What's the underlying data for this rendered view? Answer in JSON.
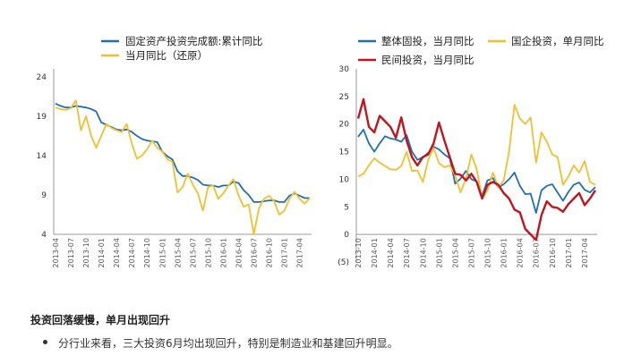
{
  "chart_data": [
    {
      "type": "line",
      "x": [
        "2013-04",
        "2013-05",
        "2013-06",
        "2013-07",
        "2013-08",
        "2013-09",
        "2013-10",
        "2013-11",
        "2013-12",
        "2014-01",
        "2014-02",
        "2014-03",
        "2014-04",
        "2014-05",
        "2014-06",
        "2014-07",
        "2014-08",
        "2014-09",
        "2014-10",
        "2014-11",
        "2014-12",
        "2015-01",
        "2015-02",
        "2015-03",
        "2015-04",
        "2015-05",
        "2015-06",
        "2015-07",
        "2015-08",
        "2015-09",
        "2015-10",
        "2015-11",
        "2015-12",
        "2016-01",
        "2016-02",
        "2016-03",
        "2016-04",
        "2016-05",
        "2016-06",
        "2016-07",
        "2016-08",
        "2016-09",
        "2016-10",
        "2016-11",
        "2016-12",
        "2017-01",
        "2017-02",
        "2017-03",
        "2017-04",
        "2017-05",
        "2017-06"
      ],
      "x_tick_labels": [
        "2013-04",
        "2013-07",
        "2013-10",
        "2014-01",
        "2014-04",
        "2014-07",
        "2014-10",
        "2015-01",
        "2015-04",
        "2015-07",
        "2015-10",
        "2016-01",
        "2016-04",
        "2016-07",
        "2016-10",
        "2017-01",
        "2017-04"
      ],
      "y_ticks": [
        4,
        9,
        14,
        19,
        24
      ],
      "ylim": [
        4,
        25
      ],
      "series": [
        {
          "name": "固定资产投资完成额:累计同比",
          "color": "#1f6fb5",
          "values": [
            20.6,
            20.3,
            20.1,
            20.1,
            20.3,
            20.2,
            20.1,
            19.9,
            19.6,
            18.2,
            17.9,
            17.6,
            17.3,
            17.2,
            17.3,
            17.0,
            16.5,
            16.1,
            15.9,
            15.8,
            15.7,
            14.5,
            13.9,
            13.5,
            12.0,
            11.4,
            11.4,
            11.2,
            10.9,
            10.3,
            10.2,
            10.2,
            10.0,
            10.2,
            10.2,
            10.7,
            10.5,
            9.6,
            9.0,
            8.1,
            8.1,
            8.2,
            8.3,
            8.3,
            8.1,
            8.1,
            8.9,
            9.2,
            8.9,
            8.6,
            8.6
          ]
        },
        {
          "name": "当月同比（还原）",
          "color": "#f0c030",
          "values": [
            20.1,
            19.9,
            19.8,
            20.0,
            21.0,
            17.2,
            19.0,
            16.5,
            15.0,
            16.5,
            18.0,
            17.5,
            17.2,
            17.0,
            18.0,
            15.5,
            13.6,
            14.0,
            14.8,
            15.9,
            15.0,
            14.5,
            13.5,
            13.2,
            9.3,
            10.0,
            11.7,
            10.3,
            9.2,
            7.0,
            10.0,
            10.2,
            8.5,
            9.2,
            10.2,
            11.0,
            8.9,
            7.5,
            7.8,
            4.0,
            7.3,
            8.5,
            8.9,
            8.2,
            6.5,
            7.0,
            8.5,
            9.4,
            8.5,
            7.9,
            8.6
          ]
        }
      ]
    },
    {
      "type": "line",
      "x": [
        "2013-10",
        "2013-11",
        "2013-12",
        "2014-01",
        "2014-02",
        "2014-03",
        "2014-04",
        "2014-05",
        "2014-06",
        "2014-07",
        "2014-08",
        "2014-09",
        "2014-10",
        "2014-11",
        "2014-12",
        "2015-01",
        "2015-02",
        "2015-03",
        "2015-04",
        "2015-05",
        "2015-06",
        "2015-07",
        "2015-08",
        "2015-09",
        "2015-10",
        "2015-11",
        "2015-12",
        "2016-01",
        "2016-02",
        "2016-03",
        "2016-04",
        "2016-05",
        "2016-06",
        "2016-07",
        "2016-08",
        "2016-09",
        "2016-10",
        "2016-11",
        "2016-12",
        "2017-01",
        "2017-02",
        "2017-03",
        "2017-04",
        "2017-05",
        "2017-06"
      ],
      "x_tick_labels": [
        "2013-10",
        "2014-01",
        "2014-04",
        "2014-07",
        "2014-10",
        "2015-01",
        "2015-04",
        "2015-07",
        "2015-10",
        "2016-01",
        "2016-04",
        "2016-07",
        "2016-10",
        "2017-01",
        "2017-04"
      ],
      "y_ticks": [
        -5,
        0,
        5,
        10,
        15,
        20,
        25,
        30
      ],
      "y_tick_labels": [
        "(5)",
        "0",
        "5",
        "10",
        "15",
        "20",
        "25",
        "30"
      ],
      "ylim": [
        -5,
        30
      ],
      "series": [
        {
          "name": "整体固投，当月同比",
          "color": "#1f6fb5",
          "values": [
            17.7,
            19.0,
            16.5,
            15.0,
            16.5,
            17.8,
            17.4,
            17.2,
            16.8,
            18.0,
            15.0,
            13.5,
            14.0,
            14.8,
            15.9,
            15.4,
            14.5,
            13.8,
            9.2,
            10.1,
            11.5,
            10.0,
            9.6,
            7.0,
            9.8,
            10.2,
            8.5,
            9.1,
            10.0,
            11.2,
            8.8,
            7.3,
            7.4,
            3.9,
            8.0,
            8.8,
            9.1,
            7.6,
            6.1,
            7.7,
            9.0,
            9.4,
            8.1,
            7.6,
            8.6
          ]
        },
        {
          "name": "国企投资，单月同比",
          "color": "#f0c030",
          "values": [
            10.5,
            11.0,
            12.5,
            13.8,
            13.0,
            12.4,
            11.8,
            11.7,
            12.4,
            15.0,
            11.5,
            11.6,
            9.5,
            13.5,
            15.7,
            12.9,
            12.2,
            12.5,
            10.7,
            7.6,
            10.1,
            14.5,
            11.8,
            6.5,
            8.0,
            11.2,
            8.5,
            9.8,
            15.0,
            23.5,
            21.0,
            20.0,
            21.2,
            13.0,
            18.5,
            16.8,
            14.5,
            14.0,
            9.0,
            10.5,
            12.5,
            11.2,
            13.3,
            9.5,
            9.0
          ]
        },
        {
          "name": "民间投资，当月同比",
          "color": "#c0141e",
          "values": [
            21.0,
            24.5,
            19.5,
            18.5,
            21.5,
            20.5,
            19.5,
            17.5,
            21.2,
            17.0,
            14.0,
            12.5,
            14.0,
            14.5,
            16.5,
            20.3,
            17.0,
            14.0,
            11.0,
            10.8,
            9.8,
            11.0,
            9.5,
            6.5,
            9.0,
            9.5,
            9.0,
            7.5,
            6.5,
            4.5,
            4.0,
            1.0,
            0.0,
            -1.0,
            3.5,
            6.0,
            5.0,
            4.8,
            4.1,
            5.5,
            6.5,
            7.5,
            5.3,
            6.5,
            8.0
          ]
        }
      ]
    }
  ],
  "text": {
    "heading": "投资回落缓慢，单月出现回升",
    "bullet": "分行业来看，三大投资6月均出现回升，特别是制造业和基建回升明显。"
  }
}
